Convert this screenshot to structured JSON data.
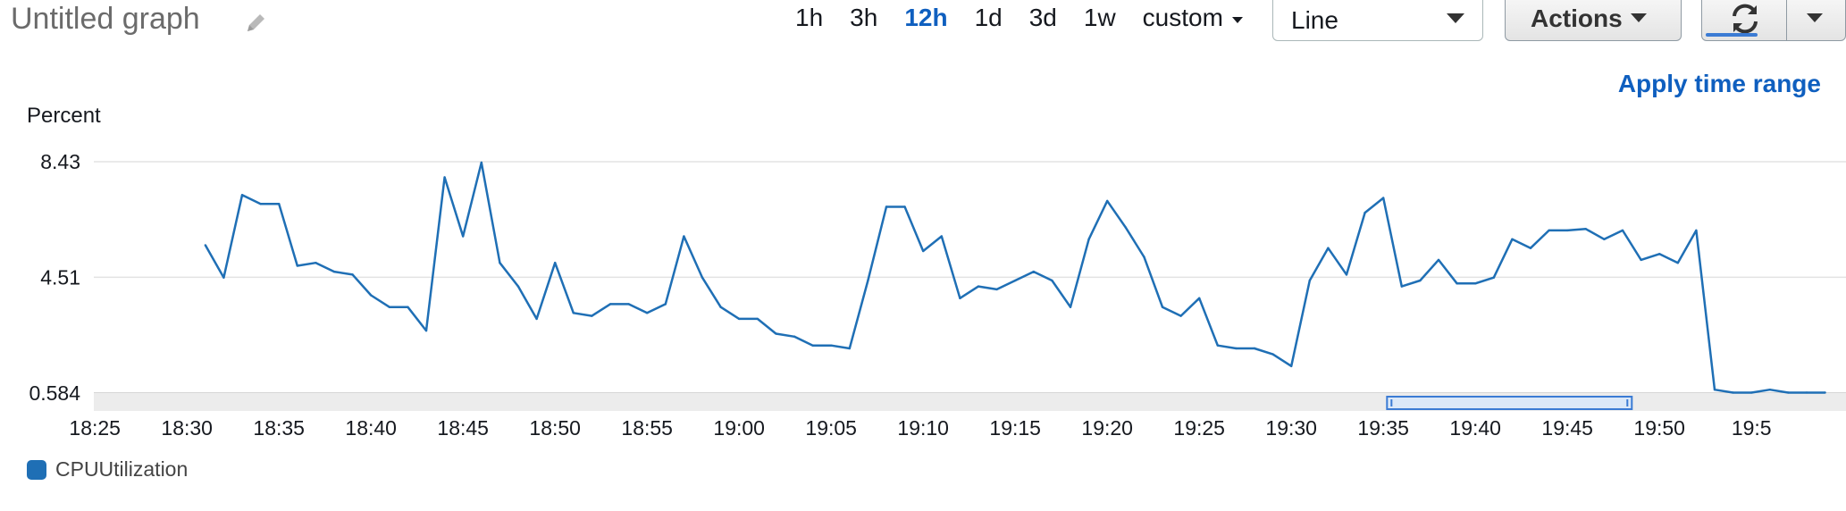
{
  "graph": {
    "title": "Untitled graph"
  },
  "toolbar": {
    "ranges": [
      "1h",
      "3h",
      "12h",
      "1d",
      "3d",
      "1w"
    ],
    "active_range": "12h",
    "custom_label": "custom",
    "view_type": "Line",
    "actions_label": "Actions",
    "apply_label": "Apply time range",
    "refresh_progress": 0.66
  },
  "colors": {
    "accent": "#0f5fbf",
    "series": "#1f6fb5",
    "brush": "#3b7bd4"
  },
  "chart_data": {
    "type": "line",
    "ylabel": "Percent",
    "y_ticks": [
      "8.43",
      "4.51",
      "0.584"
    ],
    "ylim": [
      0.584,
      8.43
    ],
    "x_ticks": [
      "18:25",
      "18:30",
      "18:35",
      "18:40",
      "18:45",
      "18:50",
      "18:55",
      "19:00",
      "19:05",
      "19:10",
      "19:15",
      "19:20",
      "19:25",
      "19:30",
      "19:35",
      "19:40",
      "19:45",
      "19:50",
      "19:5"
    ],
    "x_range_minutes": [
      0,
      91
    ],
    "brush_range_minutes": [
      67.2,
      80.5
    ],
    "series": [
      {
        "name": "CPUUtilization",
        "x": [
          3.0,
          4.0,
          5.0,
          6.0,
          7.0,
          8.0,
          9.0,
          10.0,
          11.0,
          12.0,
          13.0,
          14.0,
          15.0,
          16.0,
          17.0,
          18.0,
          19.0,
          20.0,
          21.0,
          22.0,
          23.0,
          24.0,
          25.0,
          26.0,
          27.0,
          28.0,
          29.0,
          30.0,
          31.0,
          32.0,
          33.0,
          34.0,
          35.0,
          36.0,
          37.0,
          38.0,
          39.0,
          40.0,
          41.0,
          42.0,
          43.0,
          44.0,
          45.0,
          46.0,
          47.0,
          48.0,
          49.0,
          50.0,
          51.0,
          52.0,
          53.0,
          54.0,
          55.0,
          56.0,
          57.0,
          58.0,
          59.0,
          60.0,
          61.0,
          62.0,
          63.0,
          64.0,
          65.0,
          66.0,
          67.0,
          68.0,
          69.0,
          70.0,
          71.0,
          72.0,
          73.0,
          74.0,
          75.0,
          76.0,
          77.0,
          78.0,
          79.0,
          80.0,
          81.0,
          82.0,
          83.0,
          84.0,
          85.0,
          86.0,
          87.0,
          88.0,
          89.0,
          90.0,
          91.0
        ],
        "values": [
          5.6,
          4.5,
          7.3,
          7.0,
          7.0,
          4.9,
          5.0,
          4.7,
          4.6,
          3.9,
          3.5,
          3.5,
          2.7,
          7.9,
          5.9,
          8.4,
          5.0,
          4.2,
          3.1,
          5.0,
          3.3,
          3.2,
          3.6,
          3.6,
          3.3,
          3.6,
          5.9,
          4.5,
          3.5,
          3.1,
          3.1,
          2.6,
          2.5,
          2.2,
          2.2,
          2.1,
          4.4,
          6.9,
          6.9,
          5.4,
          5.9,
          3.8,
          4.2,
          4.1,
          4.4,
          4.7,
          4.4,
          3.5,
          5.8,
          7.1,
          6.2,
          5.2,
          3.5,
          3.2,
          3.8,
          2.2,
          2.1,
          2.1,
          1.9,
          1.5,
          4.4,
          5.5,
          4.6,
          6.7,
          7.2,
          4.2,
          4.4,
          5.1,
          4.3,
          4.3,
          4.5,
          5.8,
          5.5,
          6.1,
          6.1,
          6.15,
          5.8,
          6.1,
          5.1,
          5.3,
          5.0,
          6.1,
          0.7,
          0.6,
          0.6,
          0.7,
          0.6,
          0.6,
          0.6
        ]
      }
    ]
  }
}
